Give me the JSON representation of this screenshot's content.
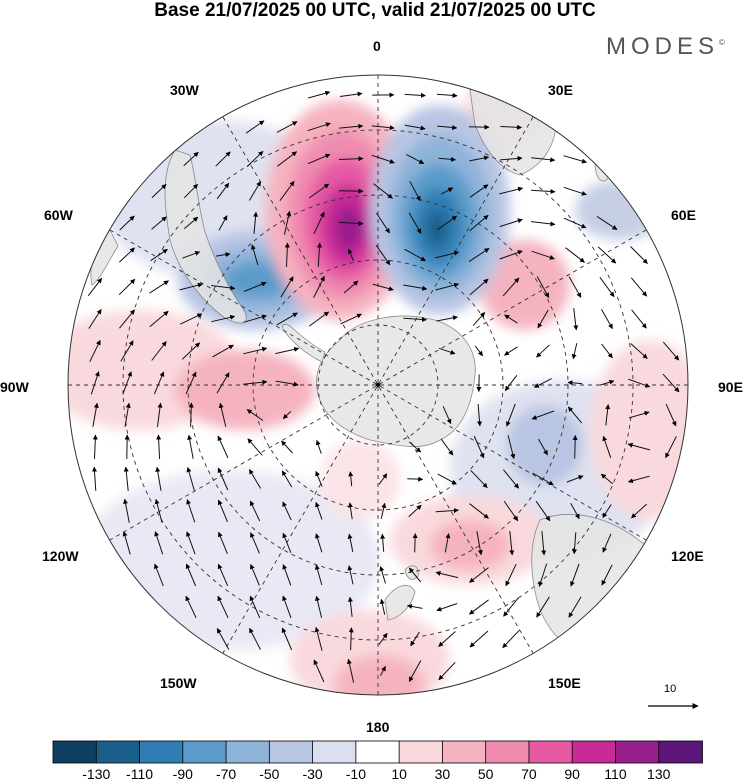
{
  "title": "Base 21/07/2025 00 UTC, valid 21/07/2025 00 UTC",
  "logo": "MODES",
  "logo_mark": "©",
  "longitude_labels": {
    "lon_0": "0",
    "lon_30e": "30E",
    "lon_60e": "60E",
    "lon_90e": "90E",
    "lon_120e": "120E",
    "lon_150e": "150E",
    "lon_180": "180",
    "lon_150w": "150W",
    "lon_120w": "120W",
    "lon_90w": "90W",
    "lon_60w": "60W",
    "lon_30w": "30W"
  },
  "reference_vector_label": "10",
  "colorbar": {
    "colors": [
      "#0e3f60",
      "#1a5f8c",
      "#2f7db3",
      "#5a9bcb",
      "#8fb4da",
      "#b8c5e3",
      "#dcdff0",
      "#ffffff",
      "#f9d9dd",
      "#f5b3c0",
      "#f08bb0",
      "#e65aa4",
      "#c82a97",
      "#961f8c",
      "#5c1578"
    ],
    "tick_labels": [
      "-130",
      "-110",
      "-90",
      "-70",
      "-50",
      "-30",
      "-10",
      "10",
      "30",
      "50",
      "70",
      "90",
      "110",
      "130"
    ]
  },
  "colors": {
    "land": "#e4e4e4",
    "coast": "#7a7a7a",
    "grid": "#333333"
  }
}
